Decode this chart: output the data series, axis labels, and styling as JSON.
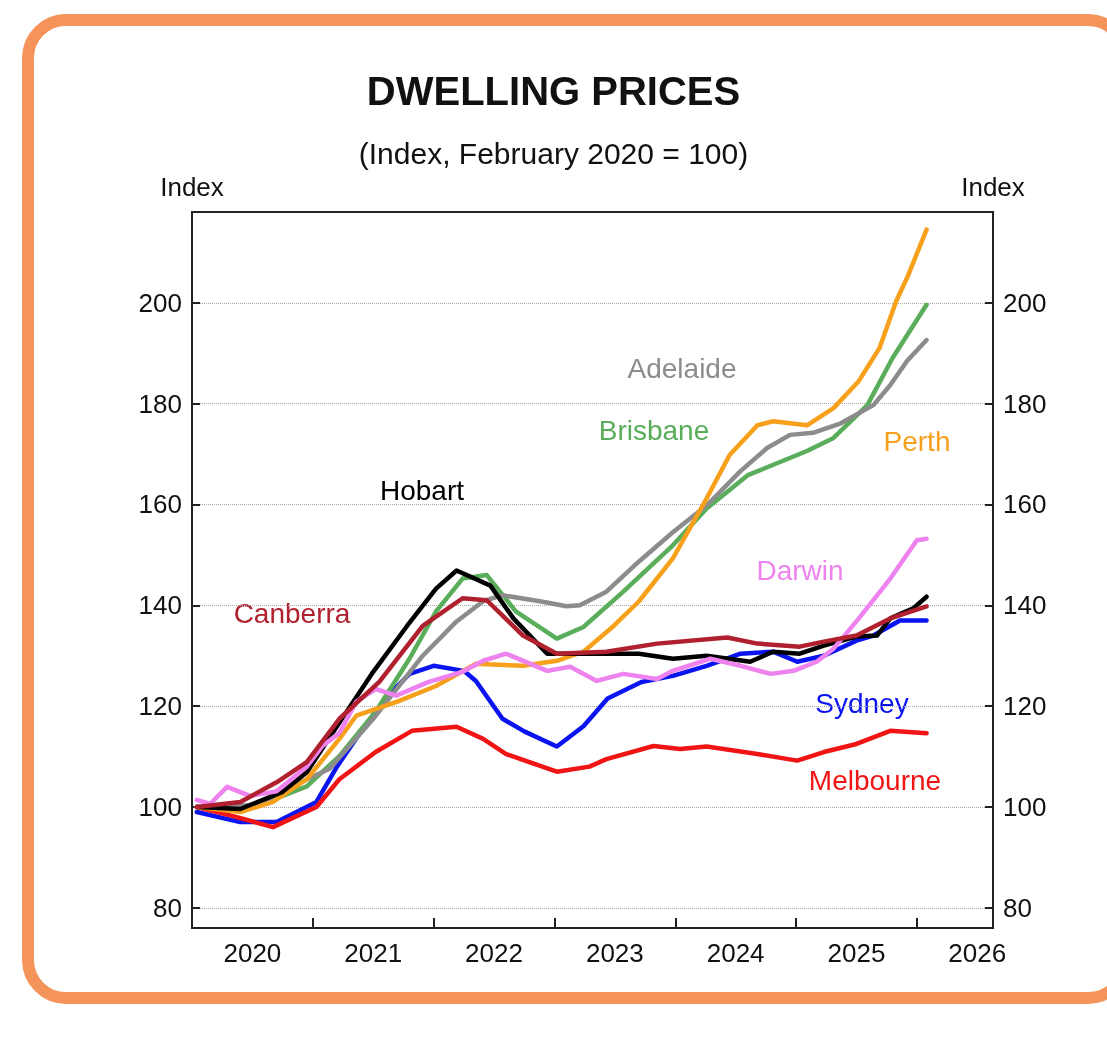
{
  "chart_data": {
    "type": "line",
    "title": "DWELLING PRICES",
    "subtitle": "(Index, February 2020 = 100)",
    "ylabel": "Index",
    "y2label": "Index",
    "grid": "y",
    "legend": false,
    "xlim": [
      2020,
      2026.63
    ],
    "xticks": [
      {
        "value": 2020,
        "label": null
      },
      {
        "value": 2021,
        "label": null
      },
      {
        "value": 2022,
        "label": null
      },
      {
        "value": 2023,
        "label": null
      },
      {
        "value": 2024,
        "label": null
      },
      {
        "value": 2025,
        "label": null
      },
      {
        "value": 2026,
        "label": null
      },
      {
        "value": 2020.5,
        "label": "2020"
      },
      {
        "value": 2021.5,
        "label": "2021"
      },
      {
        "value": 2022.5,
        "label": "2022"
      },
      {
        "value": 2023.5,
        "label": "2023"
      },
      {
        "value": 2024.5,
        "label": "2024"
      },
      {
        "value": 2025.5,
        "label": "2025"
      },
      {
        "value": 2026.5,
        "label": "2026"
      }
    ],
    "ylim": [
      76,
      218
    ],
    "yticks": [
      80,
      100,
      120,
      140,
      160,
      180,
      200
    ],
    "y2lim": [
      76,
      218
    ],
    "y2ticks": [
      80,
      100,
      120,
      140,
      160,
      180,
      200
    ],
    "series": [
      {
        "name": "Sydney",
        "color": "#0a14f0",
        "x": [
          2020.04,
          2020.4,
          2020.7,
          2021.03,
          2021.2,
          2021.4,
          2021.6,
          2021.8,
          2022.0,
          2022.25,
          2022.35,
          2022.57,
          2022.75,
          2023.02,
          2023.24,
          2023.44,
          2023.72,
          2023.98,
          2024.26,
          2024.54,
          2024.81,
          2025.01,
          2025.23,
          2025.5,
          2025.64,
          2025.86,
          2026.08
        ],
        "values": [
          99,
          97,
          97,
          101,
          108,
          115,
          121.5,
          126.4,
          128,
          127,
          125,
          117.5,
          115,
          112,
          116,
          121.5,
          124.8,
          126,
          128,
          130.4,
          130.8,
          128.8,
          130,
          133,
          134,
          137,
          137
        ]
      },
      {
        "name": "Melbourne",
        "color": "#f01414",
        "x": [
          2020.04,
          2020.34,
          2020.67,
          2021.03,
          2021.22,
          2021.52,
          2021.82,
          2022.19,
          2022.41,
          2022.6,
          2023.02,
          2023.29,
          2023.43,
          2023.82,
          2024.04,
          2024.26,
          2024.68,
          2025.01,
          2025.23,
          2025.5,
          2025.78,
          2026.08
        ],
        "values": [
          100,
          98.2,
          96,
          100,
          105.5,
          110.9,
          115.1,
          115.9,
          113.5,
          110.5,
          107,
          108,
          109.5,
          112.1,
          111.5,
          112,
          110.5,
          109.2,
          110.9,
          112.5,
          115.1,
          114.6
        ]
      },
      {
        "name": "Brisbane",
        "color": "#5aad5a",
        "x": [
          2020.04,
          2020.54,
          2020.95,
          2021.22,
          2021.52,
          2021.8,
          2022.02,
          2022.24,
          2022.44,
          2022.68,
          2023.02,
          2023.24,
          2023.57,
          2023.98,
          2024.26,
          2024.6,
          2025.09,
          2025.31,
          2025.59,
          2025.8,
          2026.08
        ],
        "values": [
          100,
          100.2,
          104.1,
          110.1,
          118.9,
          129.4,
          138.8,
          145.3,
          146,
          138.8,
          133.4,
          135.7,
          142.7,
          151.9,
          159.2,
          165.8,
          170.6,
          173.2,
          179.7,
          189.1,
          199.6
        ]
      },
      {
        "name": "Adelaide",
        "color": "#8c8c8c",
        "x": [
          2020.04,
          2020.54,
          2020.9,
          2021.14,
          2021.5,
          2021.91,
          2022.19,
          2022.41,
          2022.57,
          2022.88,
          2023.1,
          2023.21,
          2023.43,
          2023.7,
          2023.98,
          2024.26,
          2024.54,
          2024.76,
          2024.95,
          2025.14,
          2025.37,
          2025.64,
          2025.78,
          2025.92,
          2026.08
        ],
        "values": [
          100,
          100.4,
          104.9,
          107.6,
          117.5,
          130,
          136.8,
          140.8,
          142,
          140.8,
          139.8,
          140,
          142.7,
          148.7,
          154.5,
          159.8,
          166.6,
          171.2,
          173.8,
          174.2,
          176.1,
          179.7,
          183.7,
          188.5,
          192.6
        ]
      },
      {
        "name": "Perth",
        "color": "#f7a01c",
        "x": [
          2020.04,
          2020.4,
          2020.67,
          2020.95,
          2021.22,
          2021.36,
          2021.7,
          2022.02,
          2022.35,
          2022.74,
          2023.02,
          2023.24,
          2023.49,
          2023.7,
          2023.98,
          2024.26,
          2024.45,
          2024.68,
          2024.81,
          2025.09,
          2025.31,
          2025.52,
          2025.69,
          2025.83,
          2025.92,
          2026.08
        ],
        "values": [
          100,
          99,
          101,
          105.5,
          113.5,
          118.1,
          120.9,
          124,
          128.4,
          128,
          129,
          130.8,
          135.9,
          140.8,
          149.3,
          161.2,
          169.8,
          175.7,
          176.5,
          175.7,
          179.1,
          184.5,
          191,
          200.4,
          205,
          214.5
        ]
      },
      {
        "name": "Hobart",
        "color": "#000000",
        "x": [
          2020.04,
          2020.4,
          2020.75,
          2020.95,
          2021.17,
          2021.5,
          2021.78,
          2022.02,
          2022.19,
          2022.47,
          2022.66,
          2022.94,
          2023.29,
          2023.7,
          2023.98,
          2024.26,
          2024.62,
          2024.81,
          2025.03,
          2025.23,
          2025.5,
          2025.67,
          2025.78,
          2025.97,
          2026.08
        ],
        "values": [
          100,
          99.6,
          103,
          106.9,
          114.9,
          126.8,
          135.9,
          143.3,
          146.9,
          143.9,
          137.4,
          130.4,
          130.4,
          130.4,
          129.4,
          130,
          128.8,
          130.8,
          130.4,
          132,
          133.8,
          134,
          137.4,
          139.4,
          141.7
        ]
      },
      {
        "name": "Darwin",
        "color": "#ee82ee",
        "x": [
          2020.04,
          2020.15,
          2020.29,
          2020.48,
          2020.7,
          2020.95,
          2021.08,
          2021.22,
          2021.36,
          2021.52,
          2021.69,
          2021.96,
          2022.24,
          2022.41,
          2022.6,
          2022.94,
          2023.13,
          2023.35,
          2023.57,
          2023.85,
          2023.98,
          2024.29,
          2024.54,
          2024.79,
          2024.98,
          2025.17,
          2025.31,
          2025.52,
          2025.78,
          2026.0,
          2026.08
        ],
        "values": [
          101.4,
          100.6,
          104,
          102.2,
          103.1,
          108,
          112.1,
          114.7,
          120.9,
          123.4,
          122.1,
          124.8,
          126.8,
          129,
          130.4,
          127,
          127.8,
          125,
          126.4,
          125.4,
          127,
          129.4,
          128,
          126.4,
          127,
          128.8,
          131.4,
          137.4,
          145.3,
          152.9,
          153.2
        ]
      },
      {
        "name": "Canberra",
        "color": "#b0202e",
        "x": [
          2020.04,
          2020.4,
          2020.7,
          2020.95,
          2021.22,
          2021.55,
          2021.91,
          2022.24,
          2022.44,
          2022.74,
          2023.02,
          2023.43,
          2023.85,
          2024.43,
          2024.68,
          2025.03,
          2025.23,
          2025.5,
          2025.78,
          2026.08
        ],
        "values": [
          100,
          101,
          104.9,
          108.9,
          117.5,
          124.8,
          135.9,
          141.4,
          141,
          134,
          130.4,
          130.8,
          132.4,
          133.6,
          132.4,
          131.8,
          132.8,
          134,
          137.4,
          139.8
        ]
      }
    ]
  }
}
